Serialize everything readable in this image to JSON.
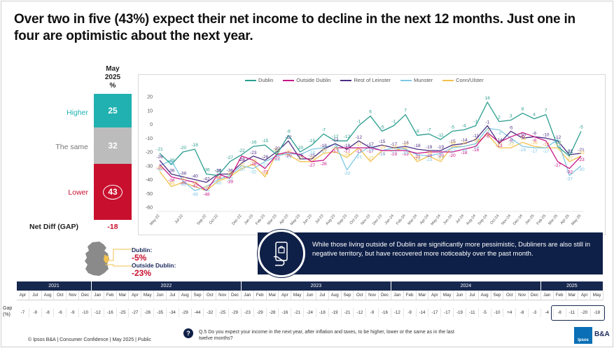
{
  "title": "Over two in five (43%) expect their net income to decline in the next 12 months. Just one in four are optimistic about the next year.",
  "current": {
    "month": "May",
    "year": "2025",
    "unit": "%",
    "rows": [
      {
        "label": "Higher",
        "value": "25",
        "color": "#21b1b1"
      },
      {
        "label": "The same",
        "value": "32",
        "color": "#bcbcbc"
      },
      {
        "label": "Lower",
        "value": "43",
        "color": "#c8102e"
      }
    ],
    "net_label": "Net Diff (GAP)",
    "net_value": "-18"
  },
  "callouts": [
    {
      "name": "Dublin:",
      "value": "-5%"
    },
    {
      "name": "Outside Dublin:",
      "value": "-23%"
    }
  ],
  "insight": "While those living outside of Dublin are significantly more pessimistic, Dubliners are also still in negative territory, but have recovered more noticeably over the past month.",
  "gap_table": {
    "label": "Gap (%)",
    "years": [
      {
        "year": "2021",
        "months": [
          "Apr",
          "Jul",
          "Aug",
          "Oct",
          "Nov",
          "Dec"
        ],
        "values": [
          "-7",
          "-9",
          "-8",
          "-6",
          "-9",
          "-10"
        ]
      },
      {
        "year": "2022",
        "months": [
          "Jan",
          "Feb",
          "Mar",
          "Apr",
          "May",
          "Jun",
          "Jul",
          "Aug",
          "Sep",
          "Oct",
          "Nov",
          "Dec"
        ],
        "values": [
          "-12",
          "-16",
          "-25",
          "-27",
          "-26",
          "-35",
          "-34",
          "-29",
          "-44",
          "-32",
          "-25",
          "-29"
        ]
      },
      {
        "year": "2023",
        "months": [
          "Jan",
          "Feb",
          "Mar",
          "Apr",
          "May",
          "Jun",
          "Jul",
          "Aug",
          "Sep",
          "Oct",
          "Nov",
          "Dec"
        ],
        "values": [
          "-23",
          "-29",
          "-28",
          "-16",
          "-21",
          "-24",
          "-18",
          "-19",
          "-21",
          "-12",
          "-9",
          "-16"
        ]
      },
      {
        "year": "2024",
        "months": [
          "Jan",
          "Feb",
          "Mar",
          "Apr",
          "May",
          "Jun",
          "Jul",
          "Aug",
          "Sep",
          "Oct",
          "Nov",
          "Dec"
        ],
        "values": [
          "-12",
          "-9",
          "-14",
          "-17",
          "-17",
          "-19",
          "-11",
          "-5",
          "-10",
          "+4",
          "-8",
          "-3"
        ]
      },
      {
        "year": "2025",
        "months": [
          "Jan",
          "Feb",
          "Mar",
          "Apr",
          "May"
        ],
        "values": [
          "-4",
          "-8",
          "-11",
          "-20",
          "-18"
        ]
      }
    ]
  },
  "question": "Q.5 Do you expect your income in the next year, after inflation and taxes, to be higher, lower or the same as in the last twelve months?",
  "footer": "© Ipsos B&A | Consumer Confidence | May 2025 | Public",
  "logo_text": "Ipsos",
  "logo_brand": "B&A",
  "chart_data": {
    "type": "line",
    "x": [
      "May-22",
      "Jun-22",
      "Jul-22",
      "Aug-22",
      "Sep-22",
      "Oct-22",
      "Nov-22",
      "Dec-22",
      "Jan-23",
      "Feb-23",
      "Mar-23",
      "Apr-23",
      "May-23",
      "Jun-23",
      "Jul-23",
      "Aug-23",
      "Sep-23",
      "Oct-23",
      "Nov-23",
      "Dec-23",
      "Jan-24",
      "Feb-24",
      "Mar-24",
      "Apr-24",
      "May-24",
      "Jun-24",
      "Jul-24",
      "Aug-24",
      "Sep-24",
      "Oct-24",
      "Nov-24",
      "Dec-24",
      "Jan-25",
      "Feb-25",
      "Mar-25",
      "Apr-25",
      "May-25"
    ],
    "x_ticks": [
      "May-22",
      "Jul-22",
      "Sep-22",
      "Oct-22",
      "Dec-22",
      "Jan-23",
      "Feb-23",
      "Mar-23",
      "Apr-23",
      "May-23",
      "Jun-23",
      "Jul-23",
      "Aug-23",
      "Sep-23",
      "Oct-23",
      "Nov-23",
      "Dec-23",
      "Jan-24",
      "Feb-24",
      "Mar-24",
      "Apr-24",
      "May-24",
      "Jun-24",
      "Jul-24",
      "Aug-24",
      "Sep-24",
      "Oct-24",
      "Nov-24",
      "Dec-24",
      "Jan-25",
      "Feb-25",
      "Mar-25",
      "Apr-25",
      "May-25"
    ],
    "ylim": [
      -60,
      20
    ],
    "y_ticks": [
      20,
      10,
      0,
      -10,
      -20,
      -30,
      -40,
      -50,
      -60
    ],
    "grid": false,
    "legend": "top",
    "series": [
      {
        "name": "Dublin",
        "color": "#2a9d8f",
        "values": [
          -21,
          -29,
          -20,
          -18,
          -36,
          -37,
          -27,
          -22,
          -16,
          -15,
          -22,
          -8,
          -20,
          -15,
          -7,
          -12,
          -12,
          -1,
          6,
          -5,
          -1,
          7,
          -8,
          -7,
          -11,
          -5,
          -4,
          -1,
          16,
          2,
          3,
          8,
          4,
          7,
          -16,
          -23,
          -5
        ]
      },
      {
        "name": "Outside Dublin",
        "color": "#c71585",
        "values": [
          -29,
          -38,
          -40,
          -42,
          -48,
          -36,
          -39,
          -23,
          -26,
          -32,
          -22,
          -20,
          -22,
          -27,
          -26,
          -17,
          -17,
          -17,
          -17,
          -19,
          -19,
          -19,
          -21,
          -20,
          -20,
          -20,
          -18,
          -16,
          -6,
          -13,
          -9,
          -6,
          -9,
          -12,
          -27,
          -32,
          -23
        ]
      },
      {
        "name": "Rest of Leinster",
        "color": "#4b2e83",
        "values": [
          -26,
          -36,
          -38,
          -40,
          -42,
          -36,
          -36,
          -28,
          -23,
          -26,
          -20,
          -12,
          -25,
          -25,
          -18,
          -14,
          -18,
          -12,
          -17,
          -15,
          -17,
          -16,
          -18,
          -19,
          -19,
          -15,
          -14,
          -11,
          -1,
          -14,
          -5,
          -10,
          -9,
          -10,
          -12,
          -22,
          -21
        ]
      },
      {
        "name": "Munster",
        "color": "#7ec8e3",
        "values": [
          -30,
          -26,
          -41,
          -48,
          -45,
          -40,
          -37,
          -30,
          -32,
          -27,
          -23,
          -21,
          -22,
          -18,
          -17,
          -14,
          -33,
          -21,
          -16,
          -19,
          -17,
          -18,
          -22,
          -23,
          -21,
          -17,
          -16,
          -14,
          -3,
          -4,
          -10,
          -16,
          -17,
          -17,
          -11,
          -37,
          -30
        ]
      },
      {
        "name": "Conn/Ulster",
        "color": "#f2c14e",
        "values": [
          -34,
          -45,
          -42,
          -45,
          -48,
          -41,
          -38,
          -32,
          -29,
          -38,
          -21,
          -22,
          -27,
          -27,
          -21,
          -20,
          -24,
          -17,
          -27,
          -19,
          -19,
          -17,
          -27,
          -23,
          -27,
          -16,
          -16,
          -14,
          -7,
          -17,
          -17,
          -13,
          -16,
          -17,
          -17,
          -27,
          -23
        ]
      }
    ]
  }
}
